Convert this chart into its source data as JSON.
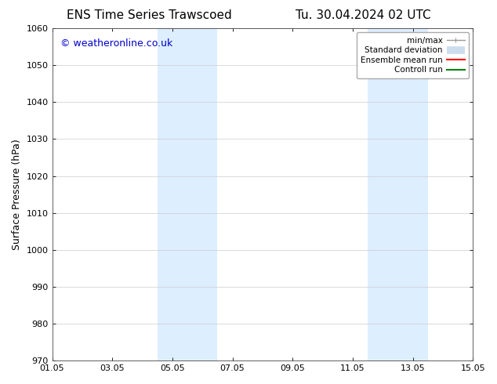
{
  "title_left": "ENS Time Series Trawscoed",
  "title_right": "Tu. 30.04.2024 02 UTC",
  "ylabel": "Surface Pressure (hPa)",
  "ylim": [
    970,
    1060
  ],
  "yticks": [
    970,
    980,
    990,
    1000,
    1010,
    1020,
    1030,
    1040,
    1050,
    1060
  ],
  "xtick_labels": [
    "01.05",
    "03.05",
    "05.05",
    "07.05",
    "09.05",
    "11.05",
    "13.05",
    "15.05"
  ],
  "xtick_values": [
    0,
    2,
    4,
    6,
    8,
    10,
    12,
    14
  ],
  "xlim": [
    0,
    14
  ],
  "shaded_regions": [
    {
      "x_start": 3.5,
      "x_end": 5.5
    },
    {
      "x_start": 10.5,
      "x_end": 12.5
    }
  ],
  "shaded_color": "#ddeeff",
  "background_color": "#ffffff",
  "watermark_text": "© weatheronline.co.uk",
  "watermark_color": "#0000cc",
  "legend_entries": [
    {
      "label": "min/max",
      "color": "#999999",
      "lw": 1.0
    },
    {
      "label": "Standard deviation",
      "color": "#ccddee",
      "lw": 7
    },
    {
      "label": "Ensemble mean run",
      "color": "#ff0000",
      "lw": 1.5
    },
    {
      "label": "Controll run",
      "color": "#008000",
      "lw": 1.5
    }
  ],
  "grid_color": "#cccccc",
  "title_fontsize": 11,
  "ylabel_fontsize": 9,
  "tick_fontsize": 8,
  "watermark_fontsize": 9,
  "legend_fontsize": 7.5
}
